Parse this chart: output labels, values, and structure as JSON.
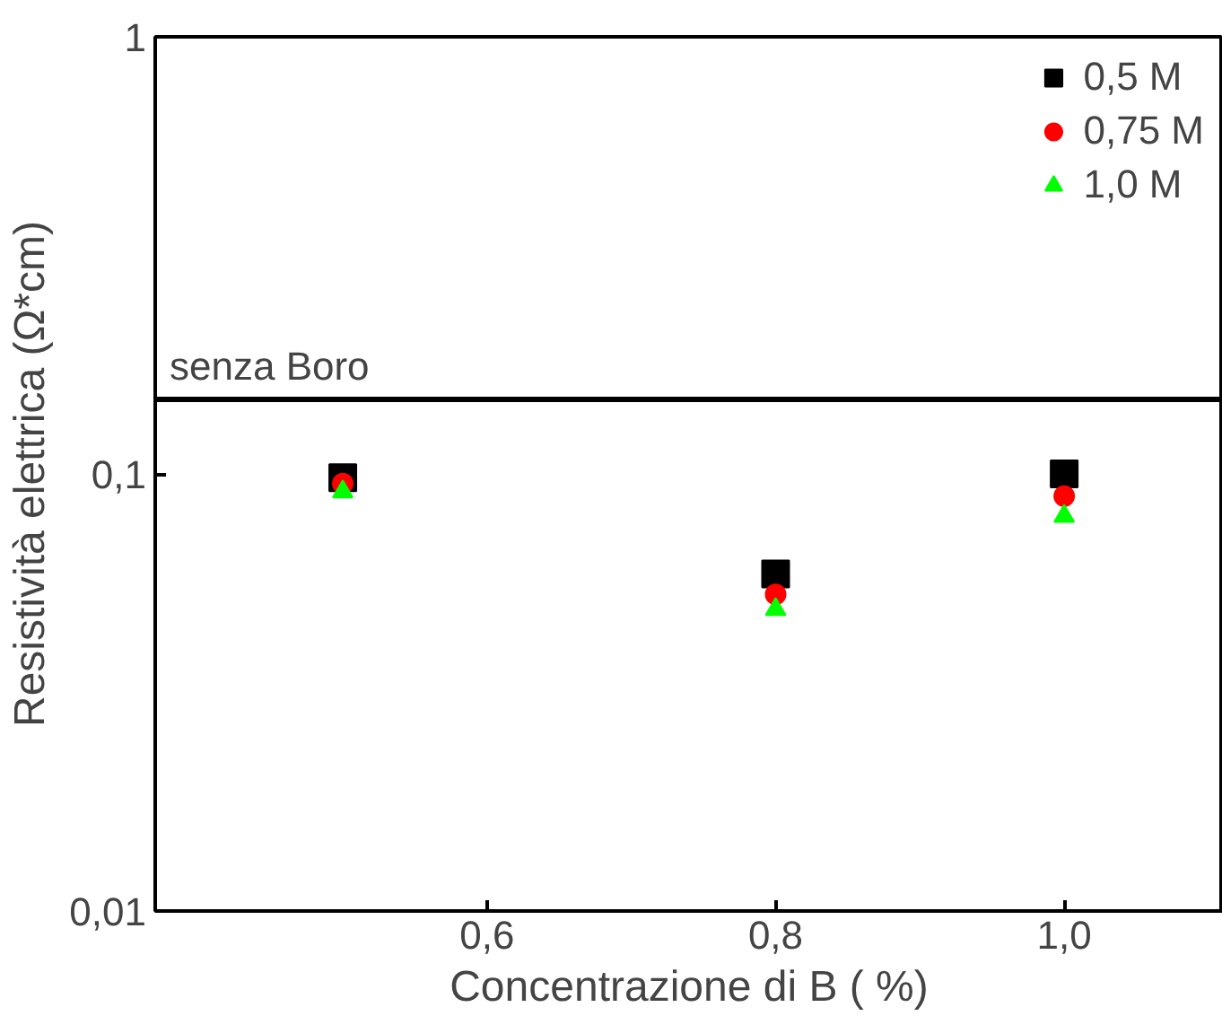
{
  "chart_data": {
    "type": "scatter",
    "xlabel": "Concentrazione di B ( %)",
    "ylabel": "Resistività elettrica (Ω*cm)",
    "log": "y",
    "grid": false,
    "legend": "top right",
    "x": [
      0.5,
      0.8,
      1.0
    ],
    "xlim": [
      0.37,
      1.11
    ],
    "xticks": [
      {
        "value": 0.6,
        "label": "0,6"
      },
      {
        "value": 0.8,
        "label": "0,8"
      },
      {
        "value": 1.0,
        "label": "1,0"
      }
    ],
    "ylim": [
      0.01,
      1
    ],
    "yticks": [
      {
        "value": 0.01,
        "label": "0,01"
      },
      {
        "value": 0.1,
        "label": "0,1"
      },
      {
        "value": 1,
        "label": "1"
      }
    ],
    "series": [
      {
        "name": "0,5 M",
        "color": "#000000",
        "marker": "square",
        "values": [
          0.098,
          0.059,
          0.1
        ]
      },
      {
        "name": "0,75 M",
        "color": "#ff0000",
        "marker": "circle",
        "values": [
          0.095,
          0.053,
          0.089
        ]
      },
      {
        "name": "1,0 M",
        "color": "#00ff00",
        "marker": "triangle",
        "values": [
          0.091,
          0.049,
          0.08
        ]
      }
    ],
    "ref_lines": [
      {
        "axis": "y",
        "value": 0.148,
        "label": "senza Boro",
        "color": "#000000",
        "line_style": "solid"
      }
    ]
  }
}
